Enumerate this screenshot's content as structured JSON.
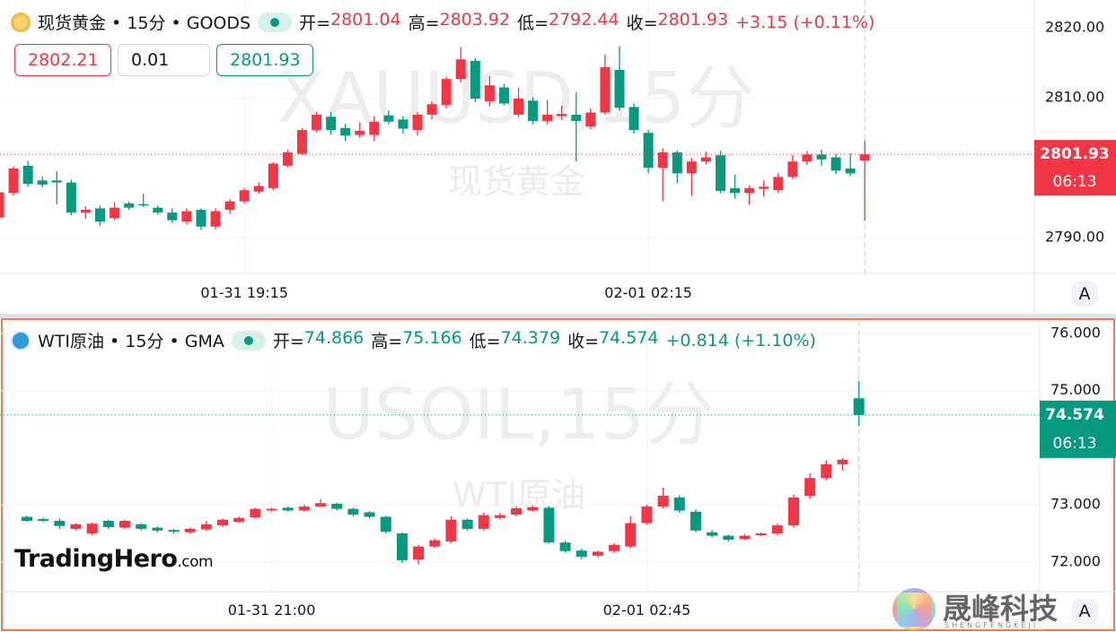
{
  "chart_data": [
    {
      "type": "candlestick",
      "title": "现货黄金 • 15分 • GOODS",
      "ohlc_keys": [
        "开=",
        "高=",
        "低=",
        "收="
      ],
      "change_label": "+3.15 (+0.11%)",
      "order_panel": [
        "2802.21",
        "0.01",
        "2801.93"
      ],
      "watermark": "XAUUSD,15分",
      "watermark_sub": "现货黄金",
      "countdown": "06:13",
      "scale_button": "A",
      "up_color": "#f23645",
      "down_color": "#089981",
      "grid": true,
      "categories": [
        null,
        null,
        null,
        null,
        null,
        null,
        null,
        null,
        null,
        null,
        null,
        null,
        null,
        null,
        null,
        null,
        null,
        "01-31 19:15",
        null,
        null,
        null,
        null,
        null,
        null,
        null,
        null,
        null,
        null,
        null,
        null,
        null,
        null,
        null,
        null,
        null,
        null,
        null,
        null,
        null,
        null,
        null,
        null,
        null,
        null,
        null,
        "02-01 02:15",
        null,
        null,
        null,
        null,
        null,
        null,
        null,
        null,
        null,
        null,
        null,
        null,
        null,
        null,
        null
      ],
      "open": [
        2792.9,
        2796.4,
        2800.3,
        2798.2,
        2798.2,
        2797.9,
        2793.6,
        2794.2,
        2792.8,
        2794.9,
        2794.8,
        2794.3,
        2793.6,
        2792.3,
        2794,
        2791.6,
        2794,
        2795.2,
        2796.6,
        2797.1,
        2800.3,
        2802,
        2805.4,
        2807.3,
        2805.7,
        2804.7,
        2804.7,
        2807.5,
        2806.9,
        2805.4,
        2807.6,
        2809,
        2812.7,
        2815.3,
        2809.5,
        2811.5,
        2807.6,
        2809.6,
        2806.7,
        2807.4,
        2807.6,
        2805.9,
        2807.9,
        2814,
        2808.7,
        2805,
        2800,
        2802.2,
        2799.2,
        2800.9,
        2801.8,
        2797.1,
        2796.4,
        2797,
        2796.8,
        2798.7,
        2800.9,
        2801.9,
        2801.5,
        2799.9,
        2801.04
      ],
      "high": [
        2797,
        2800.2,
        2801,
        2798.8,
        2799.5,
        2798.3,
        2794.5,
        2794.6,
        2795.1,
        2795.2,
        2796.3,
        2794.6,
        2794.2,
        2794.2,
        2794.2,
        2794.2,
        2795.5,
        2797.1,
        2797.9,
        2800.8,
        2802.6,
        2805.7,
        2808,
        2808,
        2806.3,
        2806.5,
        2807.4,
        2808.2,
        2807.4,
        2808,
        2809.5,
        2813,
        2817.3,
        2815.7,
        2813.1,
        2812,
        2811.5,
        2810.1,
        2809.7,
        2808.9,
        2810.8,
        2808.5,
        2816.2,
        2817.4,
        2809.2,
        2805.4,
        2802.8,
        2802.5,
        2801.4,
        2802.3,
        2802.4,
        2799,
        2797.5,
        2798.2,
        2799.3,
        2801.8,
        2802.4,
        2802.6,
        2802,
        2802.1,
        2803.92
      ],
      "low": [
        2792.5,
        2796,
        2797.3,
        2797.2,
        2794.8,
        2793.2,
        2792.7,
        2791.7,
        2792.5,
        2794,
        2794.4,
        2793.3,
        2792.1,
        2791.9,
        2791.1,
        2791.2,
        2793.4,
        2794.9,
        2796.3,
        2796.8,
        2800.1,
        2801.8,
        2805.1,
        2804.7,
        2803.8,
        2804.3,
        2803.8,
        2806.2,
        2804.9,
        2804.6,
        2806.9,
        2808.5,
        2812.2,
        2809.4,
        2808.8,
        2808.9,
        2807.2,
        2806.2,
        2806.2,
        2806.8,
        2800.9,
        2805.5,
        2807.6,
        2808.2,
        2804.9,
        2799.2,
        2795.2,
        2797.8,
        2796,
        2800.5,
        2796.4,
        2795.6,
        2794.7,
        2795.9,
        2796.4,
        2798.4,
        2800.4,
        2800.3,
        2799.1,
        2798.8,
        2792.44
      ],
      "close": [
        2796.5,
        2799.9,
        2797.7,
        2797.6,
        2797.9,
        2793.6,
        2794,
        2792.3,
        2794.3,
        2794.3,
        2794.6,
        2793.6,
        2792.5,
        2793.8,
        2791.6,
        2793.8,
        2795.2,
        2796.8,
        2797.4,
        2800.6,
        2802.2,
        2805.4,
        2807.6,
        2805.4,
        2804.6,
        2805.3,
        2806.6,
        2806.6,
        2805.6,
        2807.6,
        2809.1,
        2812.7,
        2815.5,
        2809.9,
        2811.8,
        2809.2,
        2809.9,
        2806.7,
        2807.6,
        2807.7,
        2806.7,
        2807.9,
        2814.4,
        2808.6,
        2805.4,
        2800,
        2802.2,
        2799.2,
        2800.9,
        2801.5,
        2796.7,
        2796.4,
        2797.1,
        2797.3,
        2798.7,
        2800.9,
        2801.9,
        2801.2,
        2799.6,
        2799.2,
        2801.93
      ],
      "ylim": [
        2784.9,
        2824
      ],
      "yticks": [
        {
          "value": 2790,
          "label": "2790.00"
        },
        {
          "value": 2810,
          "label": "2810.00"
        },
        {
          "value": 2820,
          "label": "2820.00"
        }
      ]
    },
    {
      "type": "candlestick",
      "title": "WTI原油 • 15分 • GMA",
      "ohlc_keys": [
        "开=",
        "高=",
        "低=",
        "收="
      ],
      "change_label": "+0.814 (+1.10%)",
      "watermark": "USOIL,15分",
      "watermark_sub": "WTI原油",
      "countdown": "06:13",
      "scale_button": "A",
      "up_color": "#f23645",
      "down_color": "#089981",
      "grid": true,
      "categories": [
        null,
        null,
        null,
        null,
        null,
        null,
        null,
        null,
        null,
        null,
        null,
        null,
        null,
        null,
        null,
        "01-31 21:00",
        null,
        null,
        null,
        null,
        null,
        null,
        null,
        null,
        null,
        null,
        null,
        null,
        null,
        null,
        null,
        null,
        null,
        null,
        null,
        null,
        null,
        null,
        "02-01 02:45",
        null,
        null,
        null,
        null,
        null,
        null,
        null,
        null,
        null,
        null,
        null,
        null,
        null
      ],
      "open": [
        72.79,
        72.75,
        72.72,
        72.58,
        72.5,
        72.72,
        72.6,
        72.66,
        72.6,
        72.56,
        72.52,
        72.57,
        72.64,
        72.7,
        72.78,
        72.9,
        72.95,
        72.9,
        72.97,
        73.02,
        72.93,
        72.87,
        72.79,
        72.5,
        72.04,
        72.27,
        72.36,
        72.74,
        72.58,
        72.77,
        72.83,
        72.9,
        72.95,
        72.34,
        72.2,
        72.11,
        72.19,
        72.27,
        72.68,
        72.97,
        73.13,
        72.88,
        72.52,
        72.46,
        72.4,
        72.47,
        72.5,
        72.64,
        73.16,
        73.47,
        73.71,
        74.866
      ],
      "high": [
        72.81,
        72.78,
        72.76,
        72.68,
        72.69,
        72.74,
        72.74,
        72.68,
        72.62,
        72.58,
        72.6,
        72.72,
        72.76,
        72.8,
        72.95,
        72.95,
        72.97,
        73.0,
        73.1,
        73.04,
        72.95,
        72.89,
        72.81,
        72.52,
        72.3,
        72.41,
        72.8,
        72.76,
        72.86,
        72.86,
        72.97,
        72.99,
        72.98,
        72.37,
        72.23,
        72.2,
        72.33,
        72.8,
        73.0,
        73.3,
        73.17,
        72.92,
        72.56,
        72.48,
        72.49,
        72.52,
        72.67,
        73.18,
        73.55,
        73.78,
        73.82,
        75.166
      ],
      "low": [
        72.7,
        72.7,
        72.58,
        72.55,
        72.47,
        72.58,
        72.58,
        72.55,
        72.52,
        72.5,
        72.49,
        72.54,
        72.61,
        72.68,
        72.76,
        72.88,
        72.88,
        72.88,
        72.99,
        72.9,
        72.8,
        72.76,
        72.5,
        71.98,
        71.96,
        72.24,
        72.33,
        72.55,
        72.55,
        72.74,
        72.8,
        72.88,
        72.32,
        72.16,
        72.05,
        72.08,
        72.16,
        72.24,
        72.65,
        72.94,
        72.86,
        72.52,
        72.43,
        72.36,
        72.38,
        72.45,
        72.47,
        72.6,
        73.1,
        73.43,
        73.6,
        74.379
      ],
      "close": [
        72.72,
        72.72,
        72.63,
        72.66,
        72.67,
        72.61,
        72.72,
        72.58,
        72.55,
        72.53,
        72.58,
        72.66,
        72.74,
        72.77,
        72.93,
        72.93,
        72.9,
        72.97,
        73.03,
        72.93,
        72.83,
        72.79,
        72.53,
        72.03,
        72.27,
        72.38,
        72.74,
        72.58,
        72.82,
        72.82,
        72.94,
        72.96,
        72.34,
        72.19,
        72.09,
        72.18,
        72.3,
        72.68,
        72.97,
        73.16,
        72.9,
        72.55,
        72.46,
        72.39,
        72.46,
        72.5,
        72.64,
        73.13,
        73.47,
        73.71,
        73.79,
        74.574
      ],
      "ylim": [
        71.48,
        76.22
      ],
      "yticks": [
        {
          "value": 72,
          "label": "72.000"
        },
        {
          "value": 73,
          "label": "73.000"
        },
        {
          "value": 75,
          "label": "75.000"
        },
        {
          "value": 76,
          "label": "76.000"
        }
      ]
    }
  ],
  "branding": {
    "name": "TradingHero",
    "suffix": ".com",
    "partner": "晟峰科技",
    "partner_pinyin": "SHENGFENGKEJI"
  }
}
